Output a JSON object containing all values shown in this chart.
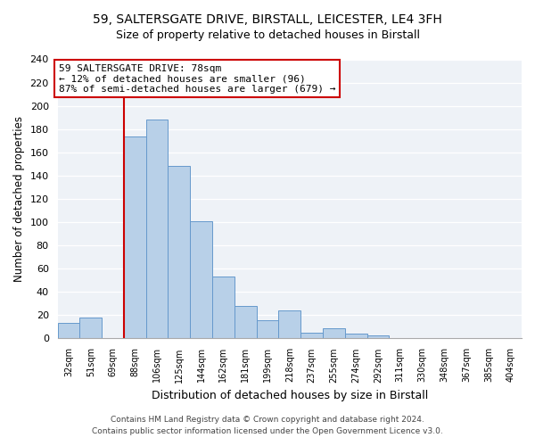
{
  "title1": "59, SALTERSGATE DRIVE, BIRSTALL, LEICESTER, LE4 3FH",
  "title2": "Size of property relative to detached houses in Birstall",
  "xlabel": "Distribution of detached houses by size in Birstall",
  "ylabel": "Number of detached properties",
  "bin_labels": [
    "32sqm",
    "51sqm",
    "69sqm",
    "88sqm",
    "106sqm",
    "125sqm",
    "144sqm",
    "162sqm",
    "181sqm",
    "199sqm",
    "218sqm",
    "237sqm",
    "255sqm",
    "274sqm",
    "292sqm",
    "311sqm",
    "330sqm",
    "348sqm",
    "367sqm",
    "385sqm",
    "404sqm"
  ],
  "bar_heights": [
    13,
    18,
    0,
    174,
    188,
    148,
    101,
    53,
    28,
    16,
    24,
    5,
    9,
    4,
    3,
    0,
    0,
    0,
    0,
    0,
    0
  ],
  "bar_color": "#b8d0e8",
  "bar_edge_color": "#6699cc",
  "vline_color": "#cc0000",
  "annotation_text": "59 SALTERSGATE DRIVE: 78sqm\n← 12% of detached houses are smaller (96)\n87% of semi-detached houses are larger (679) →",
  "annotation_box_color": "#ffffff",
  "annotation_box_edge": "#cc0000",
  "ylim": [
    0,
    240
  ],
  "yticks": [
    0,
    20,
    40,
    60,
    80,
    100,
    120,
    140,
    160,
    180,
    200,
    220,
    240
  ],
  "footer1": "Contains HM Land Registry data © Crown copyright and database right 2024.",
  "footer2": "Contains public sector information licensed under the Open Government Licence v3.0.",
  "bg_color": "#eef2f7",
  "grid_color": "#ffffff"
}
